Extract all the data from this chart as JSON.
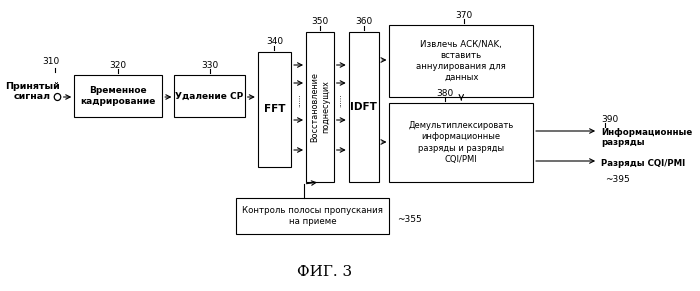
{
  "title": "ФИГ. 3",
  "background": "#ffffff",
  "label_310": "310",
  "label_320": "320",
  "label_330": "330",
  "label_340": "340",
  "label_350": "350",
  "label_360": "360",
  "label_370": "370",
  "label_380": "380",
  "label_390": "390",
  "label_395": "395",
  "label_355": "355",
  "text_signal": "Принятый\nсигнал",
  "text_320": "Временное\nкадрирование",
  "text_330": "Удаление СР",
  "text_340": "FFT",
  "text_350": "Восстановление\nподнесущих",
  "text_360": "IDFT",
  "text_370": "Извлечь АСК/NAK,\nвставить\nаннулирования для\nданных",
  "text_380": "Демультиплексировать\nинформационные\nразряды и разряды\nCQI/PMI",
  "text_390": "Информационные\nразряды",
  "text_395": "Разряды CQI/PMI",
  "text_355": "Контроль полосы пропускания\nна приеме",
  "dots": "......",
  "arrow_ticks": "~"
}
